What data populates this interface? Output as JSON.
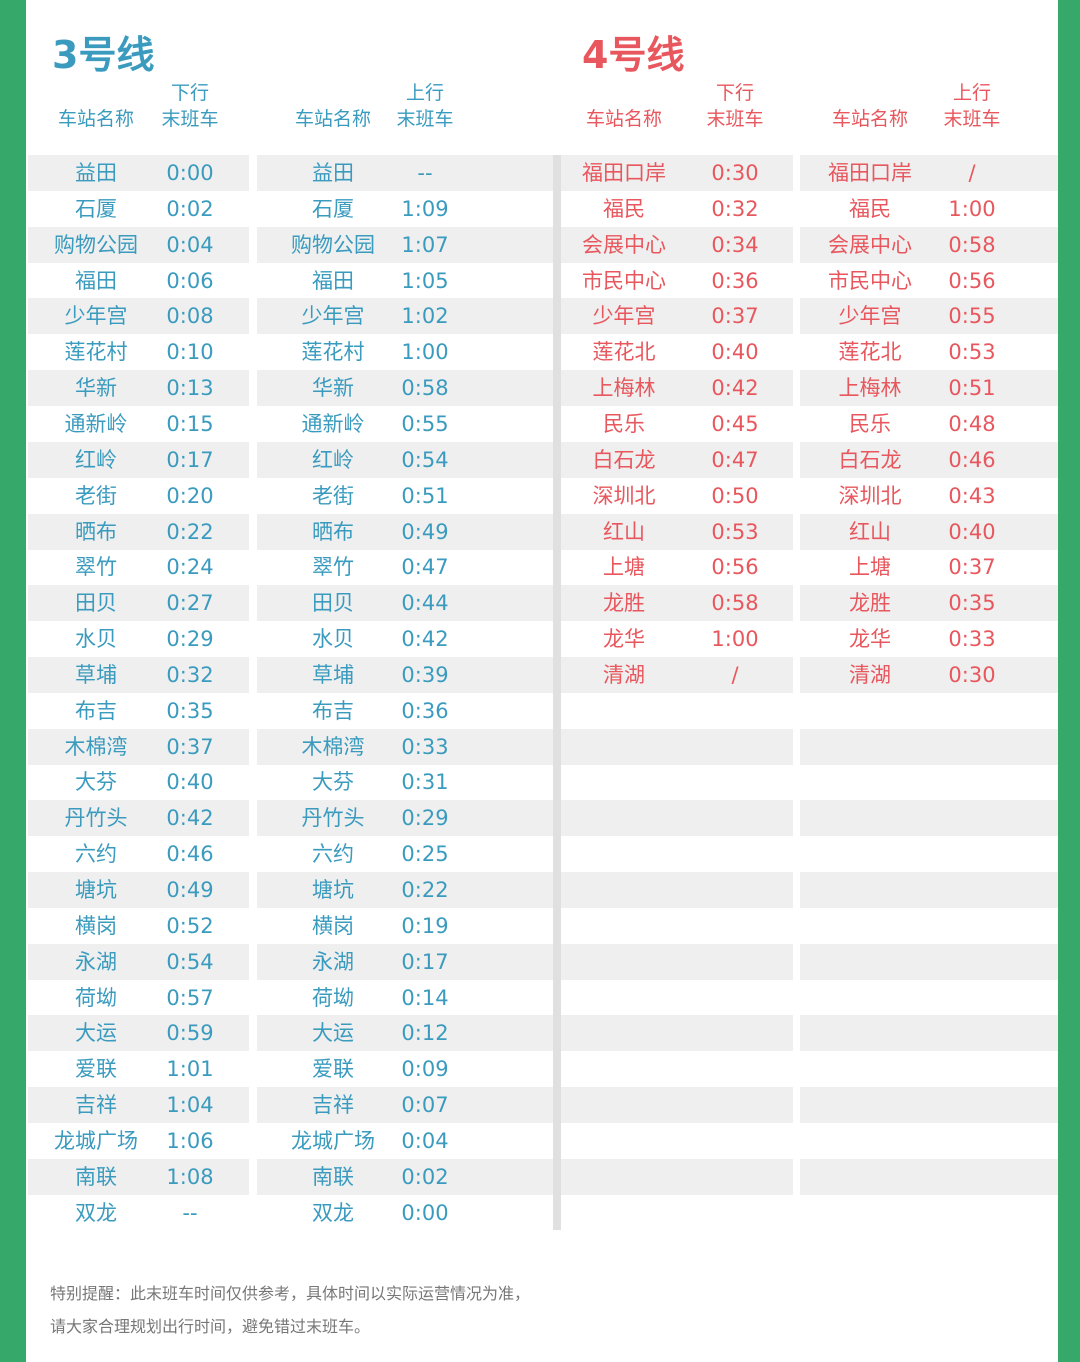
{
  "colors": {
    "line3": "#3a9bbf",
    "line4": "#e8575d",
    "border": "#35a86a",
    "stripe": "#efefef"
  },
  "line3": {
    "title": "3号线",
    "down_header": {
      "station": "车站名称",
      "dir": "下行",
      "last": "末班车"
    },
    "up_header": {
      "station": "车站名称",
      "dir": "上行",
      "last": "末班车"
    },
    "down": [
      [
        "益田",
        "0:00"
      ],
      [
        "石厦",
        "0:02"
      ],
      [
        "购物公园",
        "0:04"
      ],
      [
        "福田",
        "0:06"
      ],
      [
        "少年宫",
        "0:08"
      ],
      [
        "莲花村",
        "0:10"
      ],
      [
        "华新",
        "0:13"
      ],
      [
        "通新岭",
        "0:15"
      ],
      [
        "红岭",
        "0:17"
      ],
      [
        "老街",
        "0:20"
      ],
      [
        "晒布",
        "0:22"
      ],
      [
        "翠竹",
        "0:24"
      ],
      [
        "田贝",
        "0:27"
      ],
      [
        "水贝",
        "0:29"
      ],
      [
        "草埔",
        "0:32"
      ],
      [
        "布吉",
        "0:35"
      ],
      [
        "木棉湾",
        "0:37"
      ],
      [
        "大芬",
        "0:40"
      ],
      [
        "丹竹头",
        "0:42"
      ],
      [
        "六约",
        "0:46"
      ],
      [
        "塘坑",
        "0:49"
      ],
      [
        "横岗",
        "0:52"
      ],
      [
        "永湖",
        "0:54"
      ],
      [
        "荷坳",
        "0:57"
      ],
      [
        "大运",
        "0:59"
      ],
      [
        "爱联",
        "1:01"
      ],
      [
        "吉祥",
        "1:04"
      ],
      [
        "龙城广场",
        "1:06"
      ],
      [
        "南联",
        "1:08"
      ],
      [
        "双龙",
        "--"
      ]
    ],
    "up": [
      [
        "益田",
        "--"
      ],
      [
        "石厦",
        "1:09"
      ],
      [
        "购物公园",
        "1:07"
      ],
      [
        "福田",
        "1:05"
      ],
      [
        "少年宫",
        "1:02"
      ],
      [
        "莲花村",
        "1:00"
      ],
      [
        "华新",
        "0:58"
      ],
      [
        "通新岭",
        "0:55"
      ],
      [
        "红岭",
        "0:54"
      ],
      [
        "老街",
        "0:51"
      ],
      [
        "晒布",
        "0:49"
      ],
      [
        "翠竹",
        "0:47"
      ],
      [
        "田贝",
        "0:44"
      ],
      [
        "水贝",
        "0:42"
      ],
      [
        "草埔",
        "0:39"
      ],
      [
        "布吉",
        "0:36"
      ],
      [
        "木棉湾",
        "0:33"
      ],
      [
        "大芬",
        "0:31"
      ],
      [
        "丹竹头",
        "0:29"
      ],
      [
        "六约",
        "0:25"
      ],
      [
        "塘坑",
        "0:22"
      ],
      [
        "横岗",
        "0:19"
      ],
      [
        "永湖",
        "0:17"
      ],
      [
        "荷坳",
        "0:14"
      ],
      [
        "大运",
        "0:12"
      ],
      [
        "爱联",
        "0:09"
      ],
      [
        "吉祥",
        "0:07"
      ],
      [
        "龙城广场",
        "0:04"
      ],
      [
        "南联",
        "0:02"
      ],
      [
        "双龙",
        "0:00"
      ]
    ]
  },
  "line4": {
    "title": "4号线",
    "down_header": {
      "station": "车站名称",
      "dir": "下行",
      "last": "末班车"
    },
    "up_header": {
      "station": "车站名称",
      "dir": "上行",
      "last": "末班车"
    },
    "down": [
      [
        "福田口岸",
        "0:30"
      ],
      [
        "福民",
        "0:32"
      ],
      [
        "会展中心",
        "0:34"
      ],
      [
        "市民中心",
        "0:36"
      ],
      [
        "少年宫",
        "0:37"
      ],
      [
        "莲花北",
        "0:40"
      ],
      [
        "上梅林",
        "0:42"
      ],
      [
        "民乐",
        "0:45"
      ],
      [
        "白石龙",
        "0:47"
      ],
      [
        "深圳北",
        "0:50"
      ],
      [
        "红山",
        "0:53"
      ],
      [
        "上塘",
        "0:56"
      ],
      [
        "龙胜",
        "0:58"
      ],
      [
        "龙华",
        "1:00"
      ],
      [
        "清湖",
        "/"
      ]
    ],
    "up": [
      [
        "福田口岸",
        "/"
      ],
      [
        "福民",
        "1:00"
      ],
      [
        "会展中心",
        "0:58"
      ],
      [
        "市民中心",
        "0:56"
      ],
      [
        "少年宫",
        "0:55"
      ],
      [
        "莲花北",
        "0:53"
      ],
      [
        "上梅林",
        "0:51"
      ],
      [
        "民乐",
        "0:48"
      ],
      [
        "白石龙",
        "0:46"
      ],
      [
        "深圳北",
        "0:43"
      ],
      [
        "红山",
        "0:40"
      ],
      [
        "上塘",
        "0:37"
      ],
      [
        "龙胜",
        "0:35"
      ],
      [
        "龙华",
        "0:33"
      ],
      [
        "清湖",
        "0:30"
      ]
    ]
  },
  "note": {
    "line1": "特别提醒：此末班车时间仅供参考，具体时间以实际运营情况为准，",
    "line2": "请大家合理规划出行时间，避免错过末班车。"
  }
}
